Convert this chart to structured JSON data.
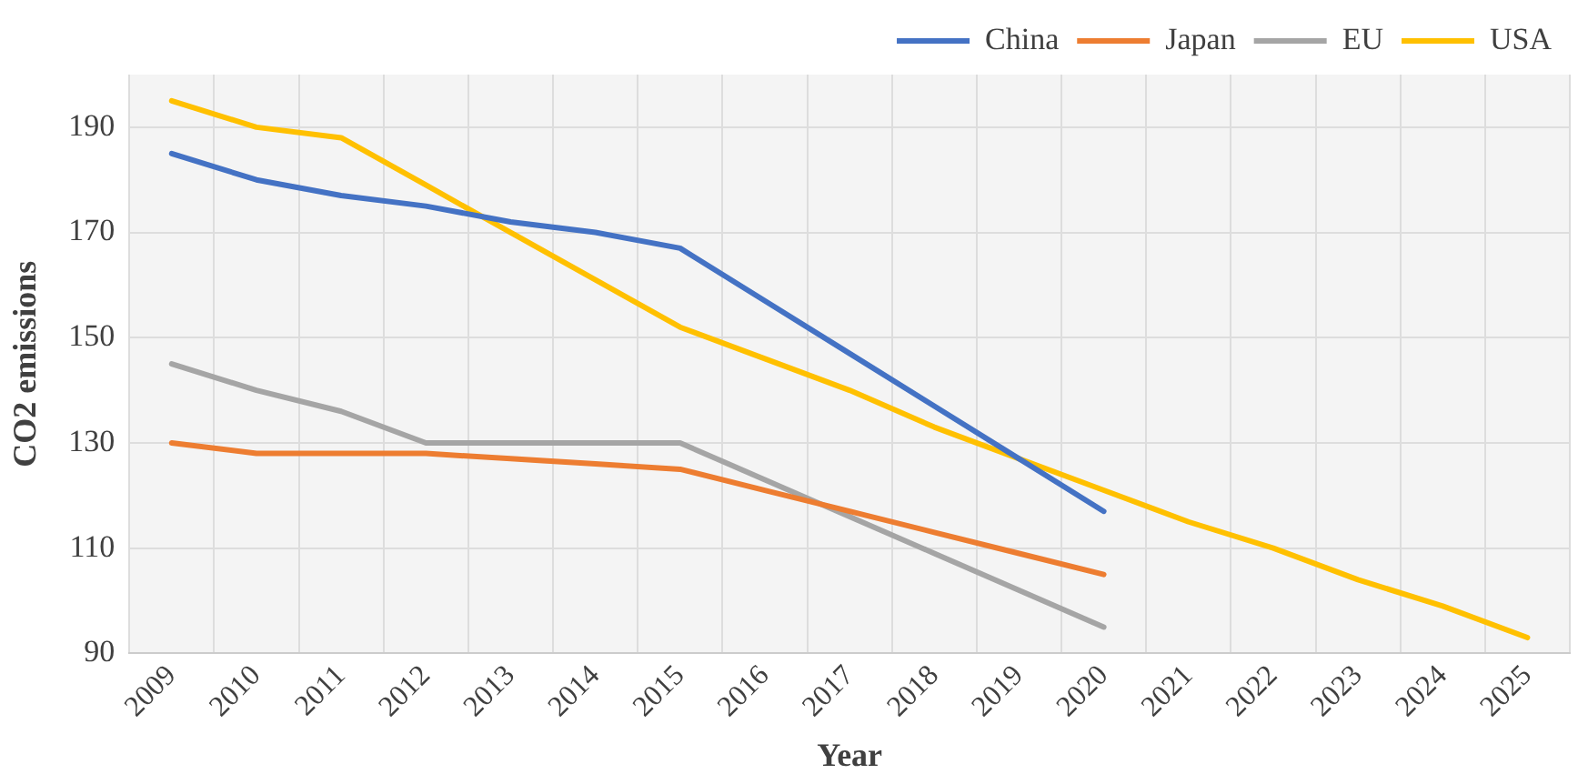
{
  "chart_data": {
    "type": "line",
    "xlabel": "Year",
    "ylabel": "CO2 emissions",
    "categories": [
      "2009",
      "2010",
      "2011",
      "2012",
      "2013",
      "2014",
      "2015",
      "2016",
      "2017",
      "2018",
      "2019",
      "2020",
      "2021",
      "2022",
      "2023",
      "2024",
      "2025"
    ],
    "series": [
      {
        "name": "China",
        "color": "#4472c4",
        "values": [
          185,
          180,
          177,
          175,
          172,
          170,
          167,
          157,
          147,
          137,
          127,
          117,
          null,
          null,
          null,
          null,
          null
        ]
      },
      {
        "name": "Japan",
        "color": "#ed7d31",
        "values": [
          130,
          128,
          128,
          128,
          127,
          126,
          125,
          121,
          117,
          113,
          109,
          105,
          null,
          null,
          null,
          null,
          null
        ]
      },
      {
        "name": "EU",
        "color": "#a5a5a5",
        "values": [
          145,
          140,
          136,
          130,
          130,
          130,
          130,
          123,
          116,
          109,
          102,
          95,
          null,
          null,
          null,
          null,
          null
        ]
      },
      {
        "name": "USA",
        "color": "#ffc000",
        "values": [
          195,
          190,
          188,
          179,
          170,
          161,
          152,
          146,
          140,
          133,
          127,
          121,
          115,
          110,
          104,
          99,
          93
        ]
      }
    ],
    "ylim": [
      90,
      200
    ],
    "yticks": [
      90,
      110,
      130,
      150,
      170,
      190
    ],
    "grid": true,
    "legend": "top right",
    "marker": "none",
    "line_style": "solid"
  }
}
